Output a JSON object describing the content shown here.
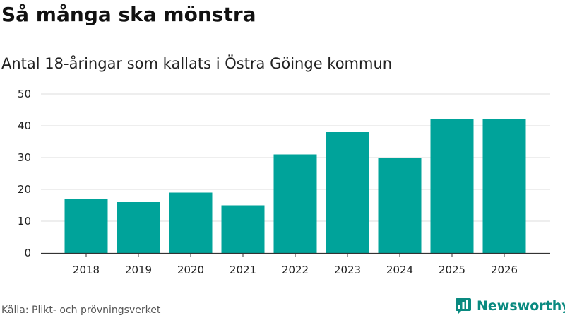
{
  "title": "Så många ska mönstra",
  "source": "Källa: Plikt- och prövningsverket",
  "brand": {
    "name": "Newsworthy",
    "icon": "newsworthy-logo-icon"
  },
  "colors": {
    "bar": "#00A39A",
    "grid": "#dddddd",
    "axis": "#333333",
    "brand": "#0a8a80"
  },
  "chart_data": {
    "type": "bar",
    "title": "Antal 18-åringar som kallats i Östra Göinge kommun",
    "xlabel": "",
    "ylabel": "",
    "categories": [
      "2018",
      "2019",
      "2020",
      "2021",
      "2022",
      "2023",
      "2024",
      "2025",
      "2026"
    ],
    "values": [
      17,
      16,
      19,
      15,
      31,
      38,
      30,
      42,
      42
    ],
    "ylim": [
      0,
      50
    ],
    "yticks": [
      0,
      10,
      20,
      30,
      40,
      50
    ],
    "grid": true,
    "legend": "none"
  }
}
